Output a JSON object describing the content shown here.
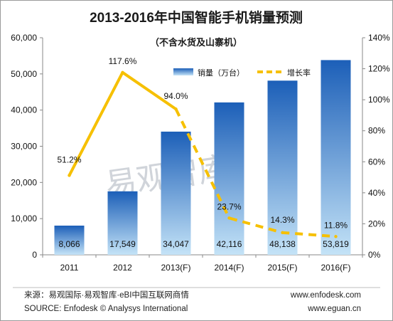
{
  "chart_data": {
    "type": "bar+line",
    "title": "2013-2016年中国智能手机销量预测",
    "subtitle": "（不含水货及山寨机）",
    "categories": [
      "2011",
      "2012",
      "2013(F)",
      "2014(F)",
      "2015(F)",
      "2016(F)"
    ],
    "series": [
      {
        "name": "销量（万台）",
        "type": "bar",
        "axis": "left",
        "values": [
          8066,
          17549,
          34047,
          42116,
          48138,
          53819
        ],
        "labels": [
          "8,066",
          "17,549",
          "34,047",
          "42,116",
          "48,138",
          "53,819"
        ],
        "color": "#1f6fc5"
      },
      {
        "name": "增长率",
        "type": "line",
        "axis": "right",
        "values": [
          51.2,
          117.6,
          94.0,
          23.7,
          14.3,
          11.8
        ],
        "labels": [
          "51.2%",
          "117.6%",
          "94.0%",
          "23.7%",
          "14.3%",
          "11.8%"
        ],
        "color": "#f6c000",
        "dashed_from_index": 2
      }
    ],
    "y_left": {
      "min": 0,
      "max": 60000,
      "ticks": [
        0,
        10000,
        20000,
        30000,
        40000,
        50000,
        60000
      ],
      "tick_labels": [
        "0",
        "10,000",
        "20,000",
        "30,000",
        "40,000",
        "50,000",
        "60,000"
      ]
    },
    "y_right": {
      "min": 0,
      "max": 140,
      "ticks": [
        0,
        20,
        40,
        60,
        80,
        100,
        120,
        140
      ],
      "tick_labels": [
        "0%",
        "20%",
        "40%",
        "60%",
        "80%",
        "100%",
        "120%",
        "140%"
      ]
    },
    "grid": false,
    "legend_position": "top-right"
  },
  "watermark": "易观智库",
  "footer": {
    "source_cn": "来源：易观国际·易观智库·eBI中国互联网商情",
    "source_en": "SOURCE: Enfodesk © Analysys International",
    "site1": "www.enfodesk.com",
    "site2": "www.eguan.cn"
  },
  "colors": {
    "bar_top": "#1c5fb8",
    "bar_bottom": "#bfe0f6",
    "line": "#f6c000",
    "axis": "#888888"
  }
}
